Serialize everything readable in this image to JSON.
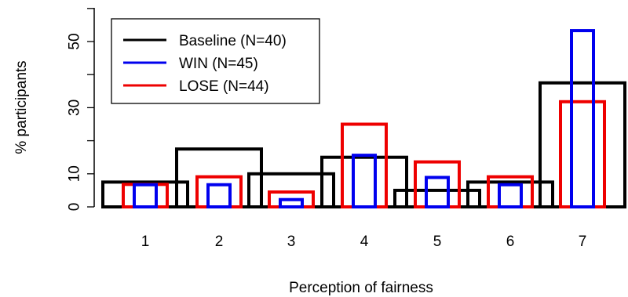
{
  "chart_data": {
    "type": "bar",
    "xlabel": "Perception of fairness",
    "ylabel": "% participants",
    "categories": [
      "1",
      "2",
      "3",
      "4",
      "5",
      "6",
      "7"
    ],
    "yticks": [
      "0",
      "10",
      "30",
      "50"
    ],
    "ylim": [
      0,
      60
    ],
    "legend_position": "top-left",
    "series": [
      {
        "name": "Baseline (N=40)",
        "color": "#000000",
        "values": [
          7.5,
          17.5,
          10,
          15,
          5,
          7.5,
          37.5
        ]
      },
      {
        "name": "WIN (N=45)",
        "color": "#0000ee",
        "values": [
          6.7,
          6.7,
          2.2,
          15.6,
          8.9,
          6.7,
          53.3
        ]
      },
      {
        "name": "LOSE (N=44)",
        "color": "#ee0000",
        "values": [
          6.8,
          9.1,
          4.5,
          25.0,
          13.6,
          9.1,
          31.8
        ]
      }
    ]
  }
}
